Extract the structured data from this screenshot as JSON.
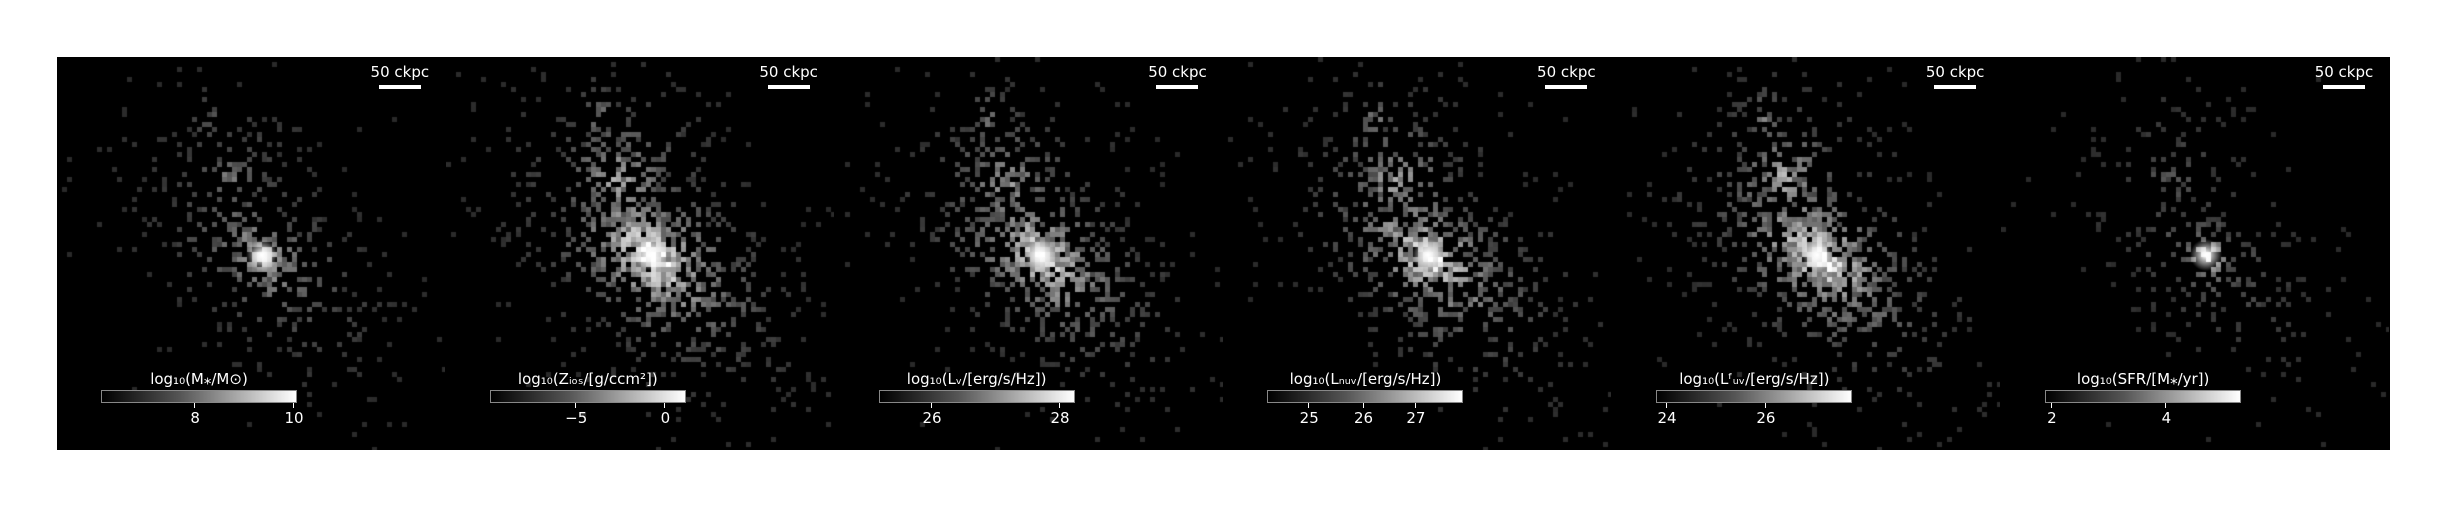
{
  "panels": [
    {
      "scalebar": "50 ckpc",
      "cbar_label": "log₁₀(M⁎/M⊙)",
      "ticks": [
        {
          "label": "8",
          "frac": 0.48
        },
        {
          "label": "10",
          "frac": 0.99
        }
      ],
      "seed": 11,
      "spread": 0.55,
      "core": 0.95
    },
    {
      "scalebar": "50 ckpc",
      "cbar_label": "log₁₀(Zᵢₒₛ/[g/ccm²])",
      "ticks": [
        {
          "label": "−5",
          "frac": 0.44
        },
        {
          "label": "0",
          "frac": 0.9
        }
      ],
      "seed": 23,
      "spread": 1.0,
      "core": 0.85
    },
    {
      "scalebar": "50 ckpc",
      "cbar_label": "log₁₀(Lᵥ/[erg/s/Hz])",
      "ticks": [
        {
          "label": "26",
          "frac": 0.27
        },
        {
          "label": "28",
          "frac": 0.93
        }
      ],
      "seed": 37,
      "spread": 0.85,
      "core": 0.95
    },
    {
      "scalebar": "50 ckpc",
      "cbar_label": "log₁₀(Lₙᵤᵥ/[erg/s/Hz])",
      "ticks": [
        {
          "label": "25",
          "frac": 0.21
        },
        {
          "label": "26",
          "frac": 0.49
        },
        {
          "label": "27",
          "frac": 0.76
        }
      ],
      "seed": 41,
      "spread": 0.9,
      "core": 0.85
    },
    {
      "scalebar": "50 ckpc",
      "cbar_label": "log₁₀(Lᶠᵤᵥ/[erg/s/Hz])",
      "ticks": [
        {
          "label": "24",
          "frac": 0.05
        },
        {
          "label": "26",
          "frac": 0.56
        }
      ],
      "seed": 53,
      "spread": 0.95,
      "core": 0.8
    },
    {
      "scalebar": "50 ckpc",
      "cbar_label": "log₁₀(SFR/[M⁎/yr])",
      "ticks": [
        {
          "label": "2",
          "frac": 0.03
        },
        {
          "label": "4",
          "frac": 0.62
        }
      ],
      "seed": 67,
      "spread": 0.35,
      "core": 1.0
    }
  ]
}
